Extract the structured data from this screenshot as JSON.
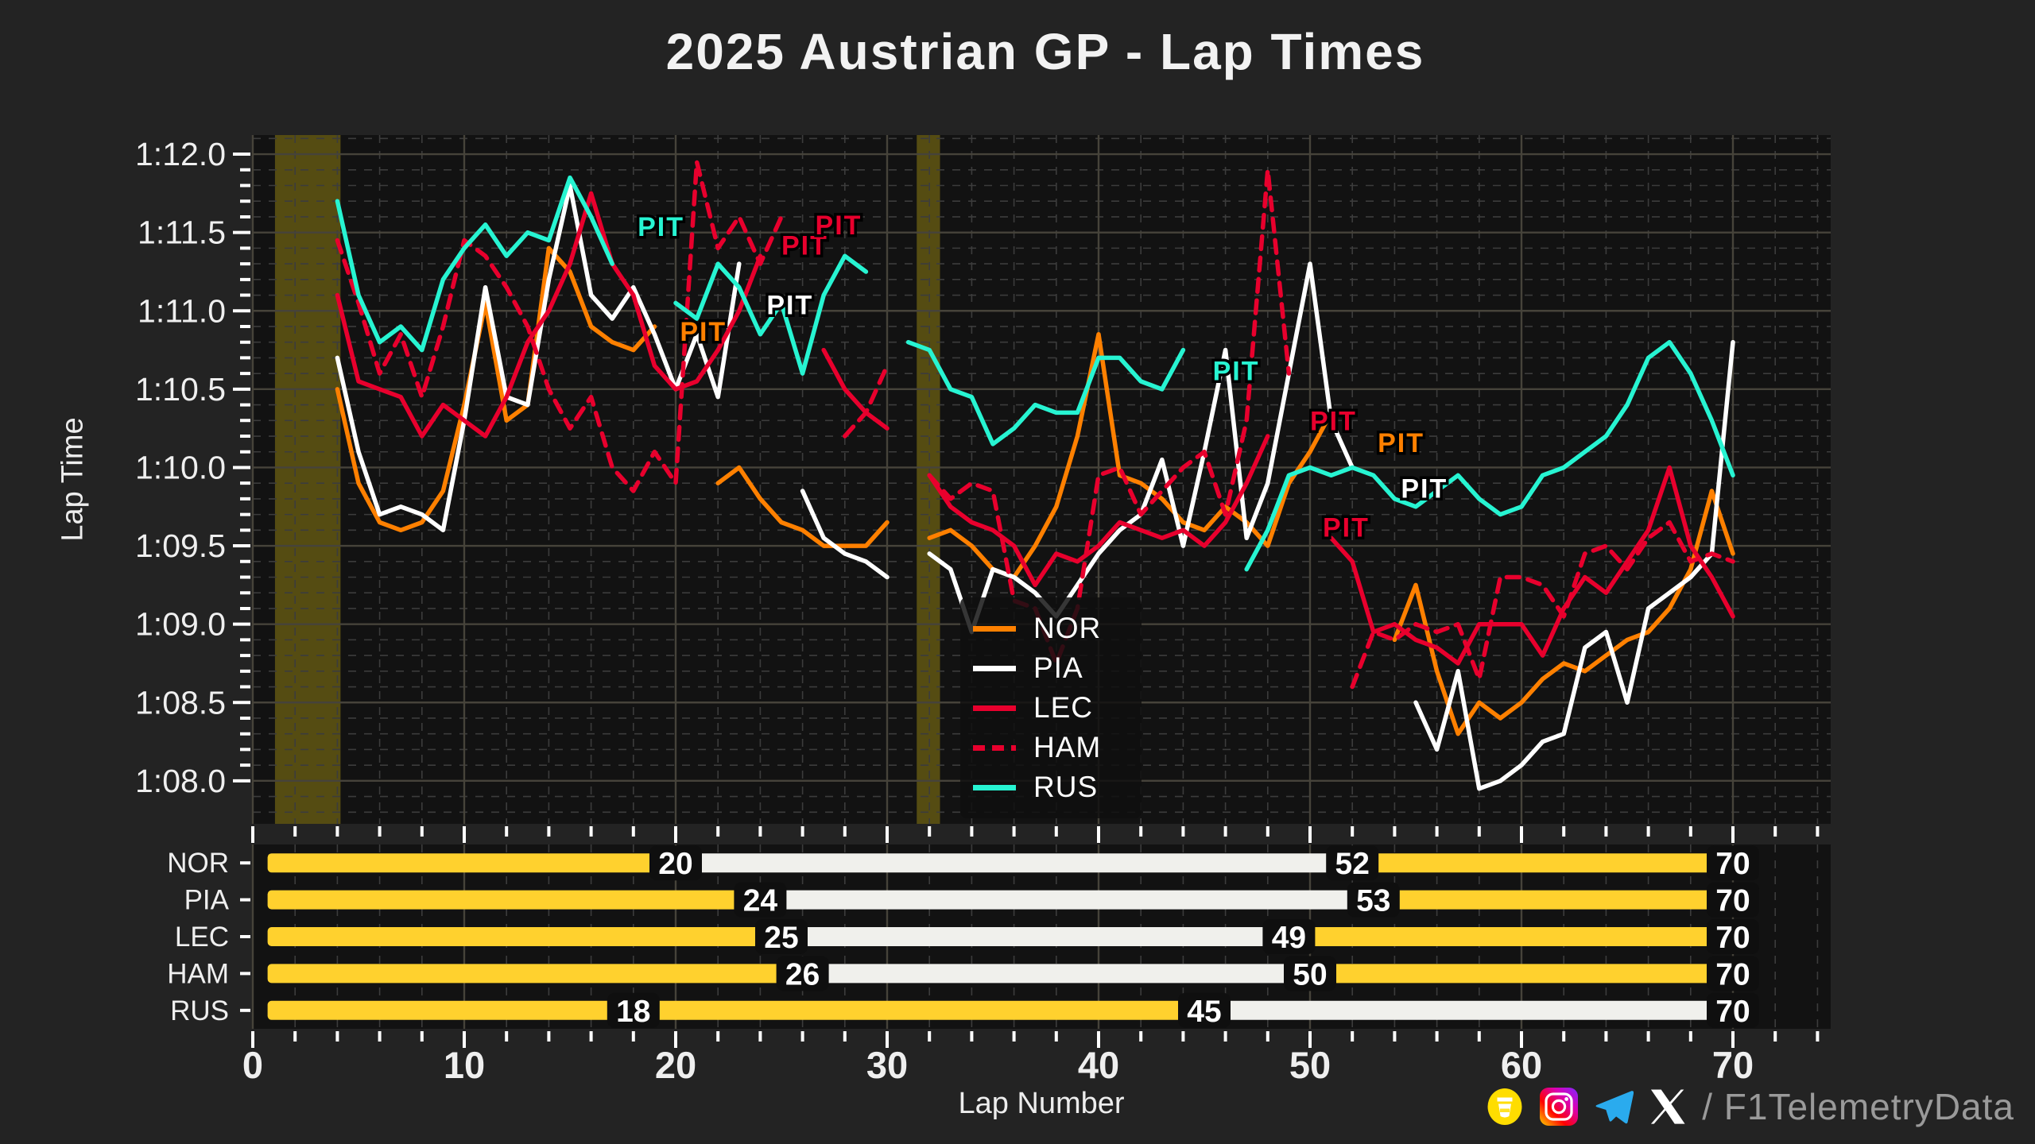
{
  "title": "2025 Austrian GP - Lap Times",
  "watermark": "@F1TelemetryData",
  "axes": {
    "y_label": "Lap Time",
    "x_label": "Lap Number",
    "y_tick_labels": [
      "1:08.0",
      "1:08.5",
      "1:09.0",
      "1:09.5",
      "1:10.0",
      "1:10.5",
      "1:11.0",
      "1:11.5",
      "1:12.0"
    ],
    "x_tick_labels": [
      "0",
      "10",
      "20",
      "30",
      "40",
      "50",
      "60",
      "70"
    ]
  },
  "legend": {
    "items": [
      {
        "label": "NOR"
      },
      {
        "label": "PIA"
      },
      {
        "label": "LEC"
      },
      {
        "label": "HAM"
      },
      {
        "label": "RUS"
      }
    ]
  },
  "footer": {
    "handle_text": "/ F1TelemetryData",
    "icons": [
      "buymeacoffee-icon",
      "instagram-icon",
      "telegram-icon",
      "x-icon"
    ]
  },
  "colors": {
    "nor": "#FF8000",
    "pia": "#FFFFFF",
    "lec": "#E8002D",
    "ham": "#E8002D",
    "rus": "#27F4D2",
    "medium_tire": "#FFD12E",
    "hard_tire": "#F0F0EC",
    "band": "#554C12",
    "grid_major": "#46433A",
    "grid_minor": "#3C3C3C",
    "plot_bg": "#121212",
    "page_bg": "#232323",
    "tick": "#FFFFFF",
    "label": "#EFEFEF"
  },
  "chart_data": {
    "type": "line",
    "title": "2025 Austrian GP - Lap Times",
    "xlabel": "Lap Number",
    "ylabel": "Lap Time",
    "x_range_laps": [
      0,
      74.6
    ],
    "y_range_seconds": [
      67.73,
      72.12
    ],
    "y_major_tick_seconds": [
      68.0,
      68.5,
      69.0,
      69.5,
      70.0,
      70.5,
      71.0,
      71.5,
      72.0
    ],
    "x_major_tick_laps": [
      0,
      10,
      20,
      30,
      40,
      50,
      60,
      70
    ],
    "x_minor_step": 2,
    "y_minor_step": 0.1,
    "grid": true,
    "legend_position": "center-right",
    "yellow_flag_bands_laps": [
      [
        1.05,
        4.15
      ],
      [
        31.4,
        32.5
      ]
    ],
    "series": [
      {
        "name": "NOR",
        "color_key": "nor",
        "dashed": false,
        "pit_laps": [
          20,
          52
        ],
        "lap_times": [
          null,
          null,
          null,
          70.5,
          69.9,
          69.65,
          69.6,
          69.65,
          69.85,
          70.4,
          71.05,
          70.3,
          70.4,
          71.4,
          71.25,
          70.9,
          70.8,
          70.75,
          70.9,
          null,
          null,
          69.9,
          70.0,
          69.8,
          69.65,
          69.6,
          69.5,
          69.5,
          69.5,
          69.65,
          null,
          69.55,
          69.6,
          69.5,
          69.35,
          69.3,
          69.5,
          69.75,
          70.2,
          70.85,
          69.95,
          69.9,
          69.8,
          69.65,
          69.6,
          69.75,
          69.65,
          69.5,
          69.9,
          70.1,
          70.35,
          null,
          null,
          68.9,
          69.25,
          68.7,
          68.3,
          68.5,
          68.4,
          68.5,
          68.65,
          68.75,
          68.7,
          68.8,
          68.9,
          68.95,
          69.1,
          69.35,
          69.85,
          69.45
        ]
      },
      {
        "name": "PIA",
        "color_key": "pia",
        "dashed": false,
        "pit_laps": [
          24,
          53
        ],
        "lap_times": [
          null,
          null,
          null,
          70.7,
          70.1,
          69.7,
          69.75,
          69.7,
          69.6,
          70.3,
          71.15,
          70.45,
          70.4,
          71.2,
          71.8,
          71.1,
          70.95,
          71.15,
          70.85,
          70.5,
          70.85,
          70.45,
          71.3,
          null,
          null,
          69.85,
          69.55,
          69.45,
          69.4,
          69.3,
          null,
          69.45,
          69.35,
          68.95,
          69.35,
          69.3,
          69.2,
          69.05,
          69.25,
          69.45,
          69.6,
          69.7,
          70.05,
          69.5,
          70.1,
          70.75,
          69.55,
          69.9,
          70.6,
          71.3,
          70.3,
          70.0,
          null,
          null,
          68.5,
          68.2,
          68.7,
          67.95,
          68.0,
          68.1,
          68.25,
          68.3,
          68.85,
          68.95,
          68.5,
          69.1,
          69.2,
          69.3,
          69.45,
          70.8
        ]
      },
      {
        "name": "LEC",
        "color_key": "lec",
        "dashed": false,
        "pit_laps": [
          25,
          49
        ],
        "lap_times": [
          null,
          null,
          null,
          71.1,
          70.55,
          70.5,
          70.45,
          70.2,
          70.4,
          70.3,
          70.2,
          70.45,
          70.8,
          71.0,
          71.3,
          71.75,
          71.3,
          71.1,
          70.65,
          70.5,
          70.55,
          70.75,
          71.0,
          71.35,
          null,
          null,
          70.75,
          70.5,
          70.35,
          70.25,
          null,
          69.95,
          69.75,
          69.65,
          69.6,
          69.5,
          69.25,
          69.45,
          69.4,
          69.5,
          69.65,
          69.6,
          69.55,
          69.6,
          69.5,
          69.65,
          69.9,
          70.2,
          null,
          null,
          69.55,
          69.4,
          68.95,
          69.0,
          68.9,
          68.85,
          68.75,
          69.0,
          69.0,
          69.0,
          68.8,
          69.1,
          69.3,
          69.2,
          69.4,
          69.6,
          70.0,
          69.5,
          69.3,
          69.05
        ]
      },
      {
        "name": "HAM",
        "color_key": "ham",
        "dashed": true,
        "pit_laps": [
          26,
          50
        ],
        "lap_times": [
          null,
          null,
          null,
          71.45,
          71.05,
          70.6,
          70.85,
          70.45,
          70.9,
          71.45,
          71.35,
          71.15,
          70.9,
          70.5,
          70.25,
          70.45,
          70.0,
          69.85,
          70.1,
          69.9,
          71.95,
          71.4,
          71.6,
          71.3,
          71.6,
          null,
          null,
          70.2,
          70.35,
          70.65,
          null,
          69.95,
          69.8,
          69.9,
          69.85,
          69.15,
          69.1,
          68.75,
          69.1,
          69.95,
          70.0,
          69.7,
          69.85,
          70.0,
          70.1,
          69.7,
          70.3,
          71.9,
          70.6,
          null,
          null,
          68.6,
          68.95,
          68.9,
          69.0,
          68.95,
          69.0,
          68.65,
          69.3,
          69.3,
          69.25,
          69.05,
          69.45,
          69.5,
          69.35,
          69.55,
          69.65,
          69.4,
          69.45,
          69.4
        ]
      },
      {
        "name": "RUS",
        "color_key": "rus",
        "dashed": false,
        "pit_laps": [
          18,
          45
        ],
        "lap_times": [
          null,
          null,
          null,
          71.7,
          71.1,
          70.8,
          70.9,
          70.75,
          71.2,
          71.4,
          71.55,
          71.35,
          71.5,
          71.45,
          71.85,
          71.6,
          71.3,
          null,
          null,
          71.05,
          70.95,
          71.3,
          71.15,
          70.85,
          71.05,
          70.6,
          71.1,
          71.35,
          71.25,
          null,
          70.8,
          70.75,
          70.5,
          70.45,
          70.15,
          70.25,
          70.4,
          70.35,
          70.35,
          70.7,
          70.7,
          70.55,
          70.5,
          70.75,
          null,
          null,
          69.35,
          69.6,
          69.95,
          70.0,
          69.95,
          70.0,
          69.95,
          69.8,
          69.75,
          69.85,
          69.95,
          69.8,
          69.7,
          69.75,
          69.95,
          70.0,
          70.1,
          70.2,
          70.4,
          70.7,
          70.8,
          70.6,
          70.3,
          69.95
        ]
      }
    ],
    "pit_labels": [
      {
        "text": "PIT",
        "series": "RUS",
        "lap": 18.2,
        "time": 71.62,
        "color_key": "rus"
      },
      {
        "text": "PIT",
        "series": "NOR",
        "lap": 20.2,
        "time": 70.95,
        "color_key": "nor"
      },
      {
        "text": "PIT",
        "series": "PIA",
        "lap": 24.3,
        "time": 71.12,
        "color_key": "pia"
      },
      {
        "text": "PIT",
        "series": "LEC",
        "lap": 25.0,
        "time": 71.5,
        "color_key": "lec"
      },
      {
        "text": "PIT",
        "series": "HAM",
        "lap": 26.6,
        "time": 71.63,
        "color_key": "ham"
      },
      {
        "text": "PIT",
        "series": "RUS",
        "lap": 45.4,
        "time": 70.7,
        "color_key": "rus"
      },
      {
        "text": "PIT",
        "series": "LEC",
        "lap": 50.0,
        "time": 70.38,
        "color_key": "lec"
      },
      {
        "text": "PIT",
        "series": "NOR",
        "lap": 53.2,
        "time": 70.24,
        "color_key": "nor"
      },
      {
        "text": "PIT",
        "series": "PIA",
        "lap": 54.3,
        "time": 69.95,
        "color_key": "pia"
      },
      {
        "text": "PIT",
        "series": "HAM",
        "lap": 50.6,
        "time": 69.7,
        "color_key": "ham"
      }
    ]
  },
  "stint_chart": {
    "type": "gantt",
    "rows": [
      {
        "driver": "NOR",
        "stints": [
          {
            "compound": "medium",
            "from": 0.7,
            "to": 20
          },
          {
            "compound": "hard",
            "from": 20,
            "to": 52
          },
          {
            "compound": "medium",
            "from": 52,
            "to": 70
          }
        ],
        "boundary_labels": [
          "20",
          "52",
          "70"
        ]
      },
      {
        "driver": "PIA",
        "stints": [
          {
            "compound": "medium",
            "from": 0.7,
            "to": 24
          },
          {
            "compound": "hard",
            "from": 24,
            "to": 53
          },
          {
            "compound": "medium",
            "from": 53,
            "to": 70
          }
        ],
        "boundary_labels": [
          "24",
          "53",
          "70"
        ]
      },
      {
        "driver": "LEC",
        "stints": [
          {
            "compound": "medium",
            "from": 0.7,
            "to": 25
          },
          {
            "compound": "hard",
            "from": 25,
            "to": 49
          },
          {
            "compound": "medium",
            "from": 49,
            "to": 70
          }
        ],
        "boundary_labels": [
          "25",
          "49",
          "70"
        ]
      },
      {
        "driver": "HAM",
        "stints": [
          {
            "compound": "medium",
            "from": 0.7,
            "to": 26
          },
          {
            "compound": "hard",
            "from": 26,
            "to": 50
          },
          {
            "compound": "medium",
            "from": 50,
            "to": 70
          }
        ],
        "boundary_labels": [
          "26",
          "50",
          "70"
        ]
      },
      {
        "driver": "RUS",
        "stints": [
          {
            "compound": "medium",
            "from": 0.7,
            "to": 18
          },
          {
            "compound": "medium",
            "from": 18,
            "to": 45
          },
          {
            "compound": "hard",
            "from": 45,
            "to": 70
          }
        ],
        "boundary_labels": [
          "18",
          "45",
          "70"
        ]
      }
    ]
  }
}
